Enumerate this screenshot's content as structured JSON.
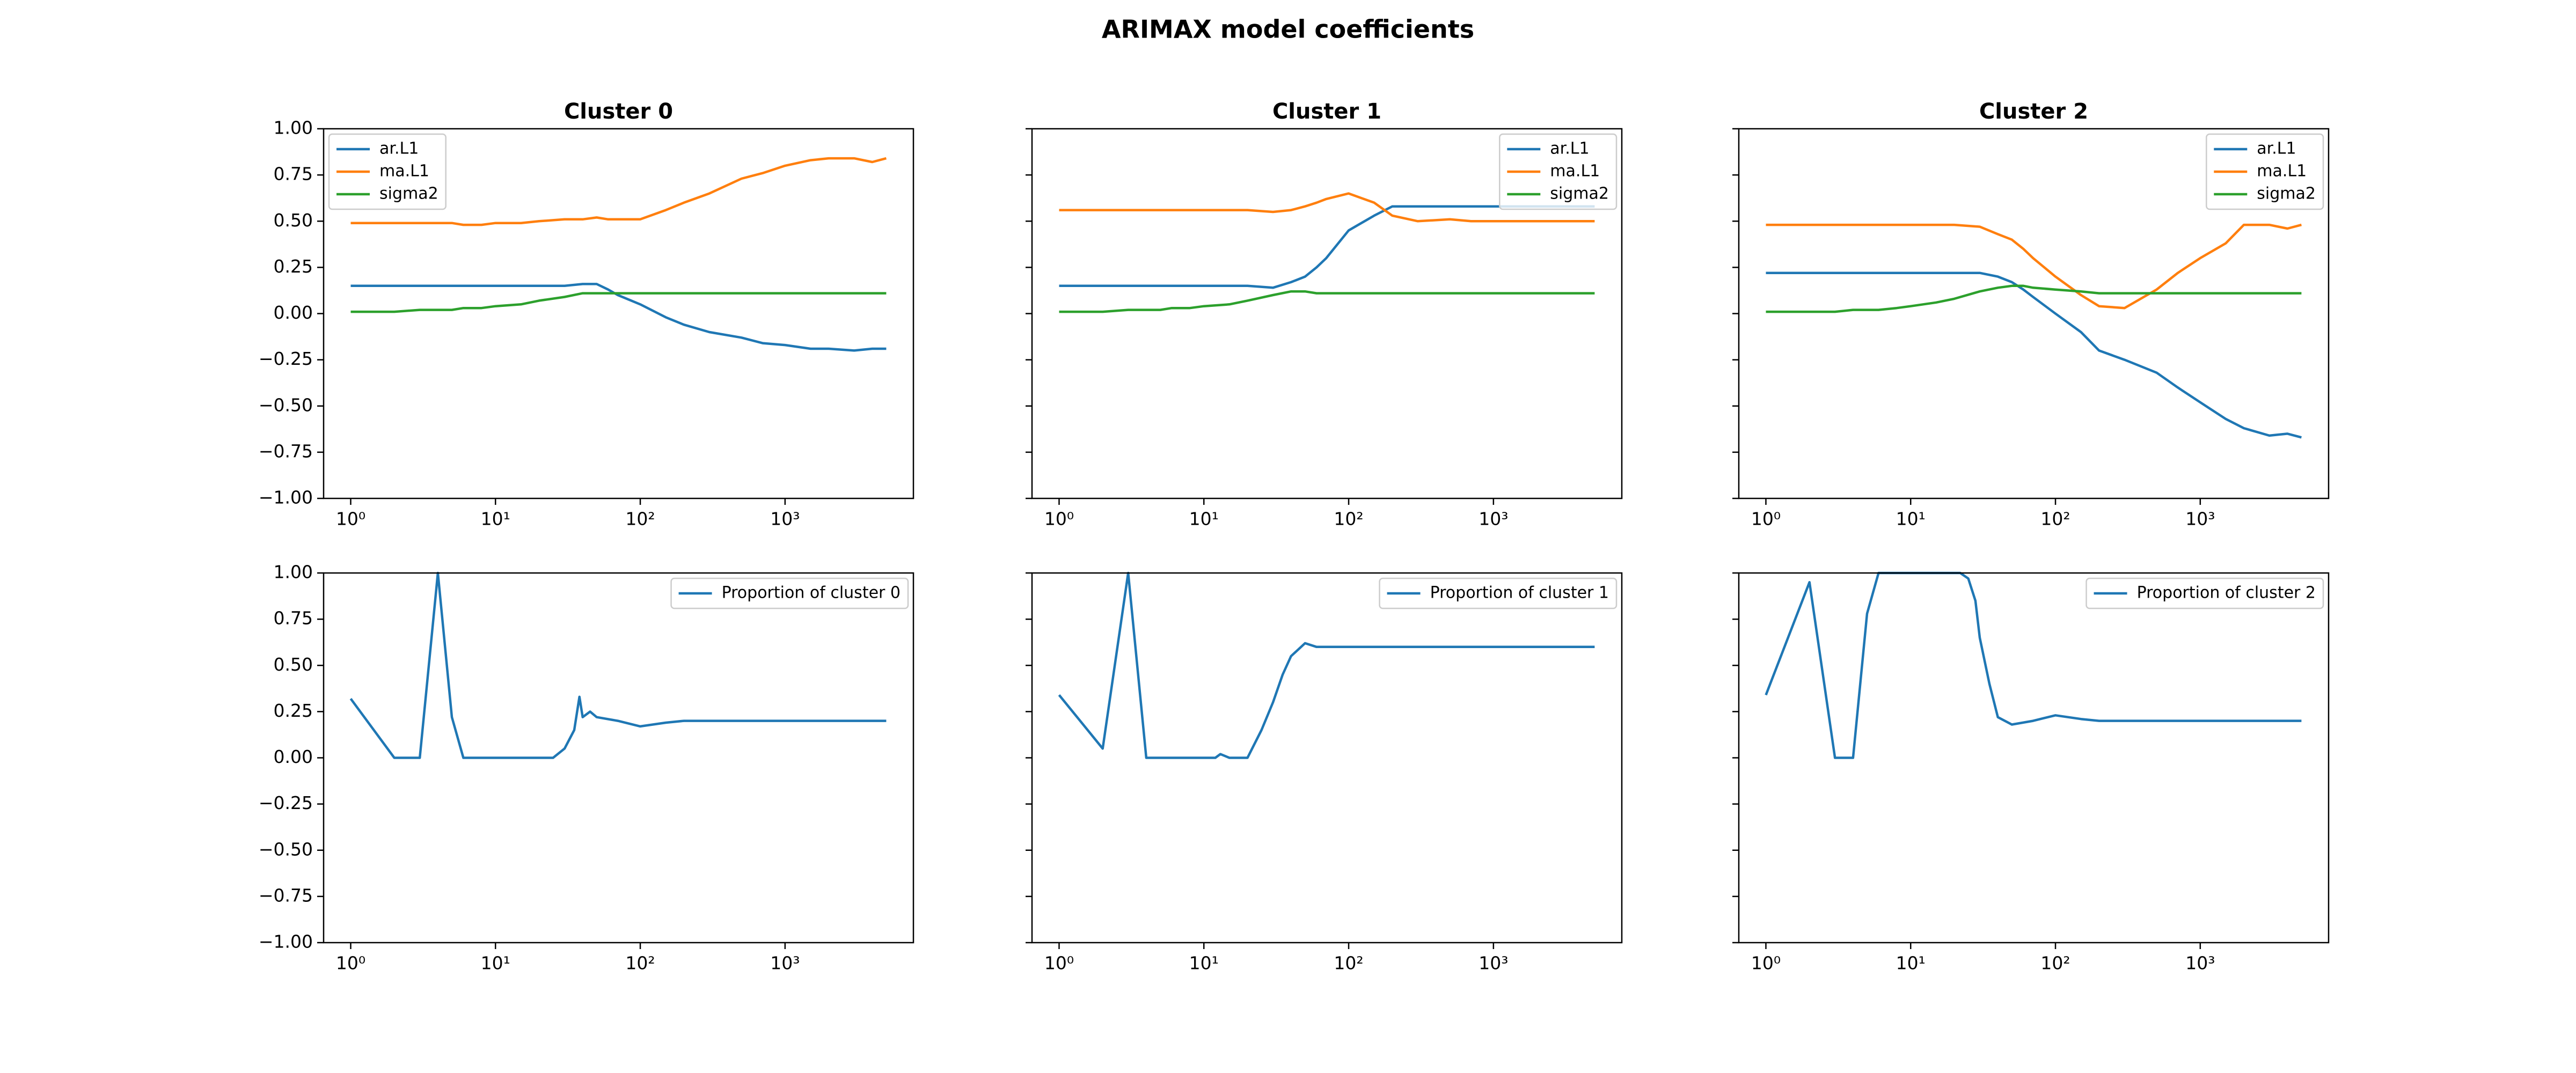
{
  "title": "ARIMAX model coefficients",
  "chart_data": [
    {
      "type": "line",
      "title": "Cluster 0",
      "xscale": "log",
      "legend": "upper left",
      "show_ytick_labels": true,
      "x": [
        1,
        2,
        3,
        4,
        5,
        6,
        8,
        10,
        15,
        20,
        30,
        40,
        50,
        60,
        70,
        100,
        150,
        200,
        300,
        500,
        700,
        1000,
        1500,
        2000,
        3000,
        4000,
        5000
      ],
      "series": [
        {
          "name": "ar.L1",
          "color": "#1f77b4",
          "values": [
            0.15,
            0.15,
            0.15,
            0.15,
            0.15,
            0.15,
            0.15,
            0.15,
            0.15,
            0.15,
            0.15,
            0.16,
            0.16,
            0.13,
            0.1,
            0.05,
            -0.02,
            -0.06,
            -0.1,
            -0.13,
            -0.16,
            -0.17,
            -0.19,
            -0.19,
            -0.2,
            -0.19,
            -0.19
          ]
        },
        {
          "name": "ma.L1",
          "color": "#ff7f0e",
          "values": [
            0.49,
            0.49,
            0.49,
            0.49,
            0.49,
            0.48,
            0.48,
            0.49,
            0.49,
            0.5,
            0.51,
            0.51,
            0.52,
            0.51,
            0.51,
            0.51,
            0.56,
            0.6,
            0.65,
            0.73,
            0.76,
            0.8,
            0.83,
            0.84,
            0.84,
            0.82,
            0.84
          ]
        },
        {
          "name": "sigma2",
          "color": "#2ca02c",
          "values": [
            0.01,
            0.01,
            0.02,
            0.02,
            0.02,
            0.03,
            0.03,
            0.04,
            0.05,
            0.07,
            0.09,
            0.11,
            0.11,
            0.11,
            0.11,
            0.11,
            0.11,
            0.11,
            0.11,
            0.11,
            0.11,
            0.11,
            0.11,
            0.11,
            0.11,
            0.11,
            0.11
          ]
        }
      ],
      "xlim": [
        0.65,
        7700
      ],
      "ylim": [
        -1,
        1
      ],
      "xticks": [
        {
          "value": 1,
          "label": "10⁰"
        },
        {
          "value": 10,
          "label": "10¹"
        },
        {
          "value": 100,
          "label": "10²"
        },
        {
          "value": 1000,
          "label": "10³"
        }
      ],
      "yticks": [
        {
          "value": -1,
          "label": "−1.00"
        },
        {
          "value": -0.75,
          "label": "−0.75"
        },
        {
          "value": -0.5,
          "label": "−0.50"
        },
        {
          "value": -0.25,
          "label": "−0.25"
        },
        {
          "value": 0,
          "label": "0.00"
        },
        {
          "value": 0.25,
          "label": "0.25"
        },
        {
          "value": 0.5,
          "label": "0.50"
        },
        {
          "value": 0.75,
          "label": "0.75"
        },
        {
          "value": 1,
          "label": "1.00"
        }
      ]
    },
    {
      "type": "line",
      "title": "Cluster 1",
      "xscale": "log",
      "legend": "upper right",
      "show_ytick_labels": false,
      "x": [
        1,
        2,
        3,
        4,
        5,
        6,
        8,
        10,
        15,
        20,
        30,
        40,
        50,
        60,
        70,
        100,
        150,
        200,
        300,
        500,
        700,
        1000,
        1500,
        2000,
        3000,
        4000,
        5000
      ],
      "series": [
        {
          "name": "ar.L1",
          "color": "#1f77b4",
          "values": [
            0.15,
            0.15,
            0.15,
            0.15,
            0.15,
            0.15,
            0.15,
            0.15,
            0.15,
            0.15,
            0.14,
            0.17,
            0.2,
            0.25,
            0.3,
            0.45,
            0.53,
            0.58,
            0.58,
            0.58,
            0.58,
            0.58,
            0.58,
            0.58,
            0.58,
            0.58,
            0.58
          ]
        },
        {
          "name": "ma.L1",
          "color": "#ff7f0e",
          "values": [
            0.56,
            0.56,
            0.56,
            0.56,
            0.56,
            0.56,
            0.56,
            0.56,
            0.56,
            0.56,
            0.55,
            0.56,
            0.58,
            0.6,
            0.62,
            0.65,
            0.6,
            0.53,
            0.5,
            0.51,
            0.5,
            0.5,
            0.5,
            0.5,
            0.5,
            0.5,
            0.5
          ]
        },
        {
          "name": "sigma2",
          "color": "#2ca02c",
          "values": [
            0.01,
            0.01,
            0.02,
            0.02,
            0.02,
            0.03,
            0.03,
            0.04,
            0.05,
            0.07,
            0.1,
            0.12,
            0.12,
            0.11,
            0.11,
            0.11,
            0.11,
            0.11,
            0.11,
            0.11,
            0.11,
            0.11,
            0.11,
            0.11,
            0.11,
            0.11,
            0.11
          ]
        }
      ],
      "xlim": [
        0.65,
        7700
      ],
      "ylim": [
        -1,
        1
      ],
      "xticks": [
        {
          "value": 1,
          "label": "10⁰"
        },
        {
          "value": 10,
          "label": "10¹"
        },
        {
          "value": 100,
          "label": "10²"
        },
        {
          "value": 1000,
          "label": "10³"
        }
      ],
      "yticks": [
        -1,
        -0.75,
        -0.5,
        -0.25,
        0,
        0.25,
        0.5,
        0.75,
        1
      ]
    },
    {
      "type": "line",
      "title": "Cluster 2",
      "xscale": "log",
      "legend": "upper right",
      "show_ytick_labels": false,
      "x": [
        1,
        2,
        3,
        4,
        5,
        6,
        8,
        10,
        15,
        20,
        30,
        40,
        50,
        60,
        70,
        100,
        150,
        200,
        300,
        500,
        700,
        1000,
        1500,
        2000,
        3000,
        4000,
        5000
      ],
      "series": [
        {
          "name": "ar.L1",
          "color": "#1f77b4",
          "values": [
            0.22,
            0.22,
            0.22,
            0.22,
            0.22,
            0.22,
            0.22,
            0.22,
            0.22,
            0.22,
            0.22,
            0.2,
            0.17,
            0.13,
            0.09,
            0.0,
            -0.1,
            -0.2,
            -0.25,
            -0.32,
            -0.4,
            -0.48,
            -0.57,
            -0.62,
            -0.66,
            -0.65,
            -0.67
          ]
        },
        {
          "name": "ma.L1",
          "color": "#ff7f0e",
          "values": [
            0.48,
            0.48,
            0.48,
            0.48,
            0.48,
            0.48,
            0.48,
            0.48,
            0.48,
            0.48,
            0.47,
            0.43,
            0.4,
            0.35,
            0.3,
            0.2,
            0.1,
            0.04,
            0.03,
            0.13,
            0.22,
            0.3,
            0.38,
            0.48,
            0.48,
            0.46,
            0.48
          ]
        },
        {
          "name": "sigma2",
          "color": "#2ca02c",
          "values": [
            0.01,
            0.01,
            0.01,
            0.02,
            0.02,
            0.02,
            0.03,
            0.04,
            0.06,
            0.08,
            0.12,
            0.14,
            0.15,
            0.15,
            0.14,
            0.13,
            0.12,
            0.11,
            0.11,
            0.11,
            0.11,
            0.11,
            0.11,
            0.11,
            0.11,
            0.11,
            0.11
          ]
        }
      ],
      "xlim": [
        0.65,
        7700
      ],
      "ylim": [
        -1,
        1
      ],
      "xticks": [
        {
          "value": 1,
          "label": "10⁰"
        },
        {
          "value": 10,
          "label": "10¹"
        },
        {
          "value": 100,
          "label": "10²"
        },
        {
          "value": 1000,
          "label": "10³"
        }
      ],
      "yticks": [
        -1,
        -0.75,
        -0.5,
        -0.25,
        0,
        0.25,
        0.5,
        0.75,
        1
      ]
    },
    {
      "type": "line",
      "xscale": "log",
      "legend": "upper right",
      "show_ytick_labels": true,
      "x": [
        1,
        2,
        3,
        4,
        5,
        6,
        8,
        10,
        15,
        20,
        25,
        30,
        35,
        38,
        40,
        45,
        50,
        70,
        100,
        150,
        200,
        300,
        500,
        1000,
        2000,
        5000
      ],
      "series": [
        {
          "name": "Proportion of cluster 0",
          "color": "#1f77b4",
          "values": [
            0.32,
            0,
            0,
            1.0,
            0.22,
            0,
            0,
            0,
            0,
            0,
            0,
            0.05,
            0.15,
            0.33,
            0.22,
            0.25,
            0.22,
            0.2,
            0.17,
            0.19,
            0.2,
            0.2,
            0.2,
            0.2,
            0.2,
            0.2
          ]
        }
      ],
      "xlim": [
        0.65,
        7700
      ],
      "ylim": [
        -1,
        1
      ],
      "xticks": [
        {
          "value": 1,
          "label": "10⁰"
        },
        {
          "value": 10,
          "label": "10¹"
        },
        {
          "value": 100,
          "label": "10²"
        },
        {
          "value": 1000,
          "label": "10³"
        }
      ],
      "yticks": [
        {
          "value": -1,
          "label": "−1.00"
        },
        {
          "value": -0.75,
          "label": "−0.75"
        },
        {
          "value": -0.5,
          "label": "−0.50"
        },
        {
          "value": -0.25,
          "label": "−0.25"
        },
        {
          "value": 0,
          "label": "0.00"
        },
        {
          "value": 0.25,
          "label": "0.25"
        },
        {
          "value": 0.5,
          "label": "0.50"
        },
        {
          "value": 0.75,
          "label": "0.75"
        },
        {
          "value": 1,
          "label": "1.00"
        }
      ]
    },
    {
      "type": "line",
      "xscale": "log",
      "legend": "upper right",
      "show_ytick_labels": false,
      "x": [
        1,
        2,
        3,
        4,
        5,
        8,
        10,
        12,
        13,
        15,
        20,
        25,
        30,
        35,
        40,
        50,
        60,
        70,
        100,
        200,
        500,
        1000,
        5000
      ],
      "series": [
        {
          "name": "Proportion of cluster 1",
          "color": "#1f77b4",
          "values": [
            0.34,
            0.05,
            1.0,
            0,
            0,
            0,
            0,
            0,
            0.02,
            0,
            0,
            0.15,
            0.3,
            0.45,
            0.55,
            0.62,
            0.6,
            0.6,
            0.6,
            0.6,
            0.6,
            0.6,
            0.6
          ]
        }
      ],
      "xlim": [
        0.65,
        7700
      ],
      "ylim": [
        -1,
        1
      ],
      "xticks": [
        {
          "value": 1,
          "label": "10⁰"
        },
        {
          "value": 10,
          "label": "10¹"
        },
        {
          "value": 100,
          "label": "10²"
        },
        {
          "value": 1000,
          "label": "10³"
        }
      ],
      "yticks": [
        -1,
        -0.75,
        -0.5,
        -0.25,
        0,
        0.25,
        0.5,
        0.75,
        1
      ]
    },
    {
      "type": "line",
      "xscale": "log",
      "legend": "upper right",
      "show_ytick_labels": false,
      "x": [
        1,
        2,
        3,
        4,
        5,
        6,
        7,
        10,
        15,
        20,
        22,
        25,
        28,
        30,
        35,
        40,
        50,
        70,
        100,
        150,
        200,
        500,
        1000,
        5000
      ],
      "series": [
        {
          "name": "Proportion of cluster 2",
          "color": "#1f77b4",
          "values": [
            0.34,
            0.95,
            0,
            0,
            0.78,
            1.0,
            1.0,
            1.0,
            1.0,
            1.0,
            1.0,
            0.97,
            0.85,
            0.65,
            0.4,
            0.22,
            0.18,
            0.2,
            0.23,
            0.21,
            0.2,
            0.2,
            0.2,
            0.2
          ]
        }
      ],
      "xlim": [
        0.65,
        7700
      ],
      "ylim": [
        -1,
        1
      ],
      "xticks": [
        {
          "value": 1,
          "label": "10⁰"
        },
        {
          "value": 10,
          "label": "10¹"
        },
        {
          "value": 100,
          "label": "10²"
        },
        {
          "value": 1000,
          "label": "10³"
        }
      ],
      "yticks": [
        -1,
        -0.75,
        -0.5,
        -0.25,
        0,
        0.25,
        0.5,
        0.75,
        1
      ]
    }
  ]
}
